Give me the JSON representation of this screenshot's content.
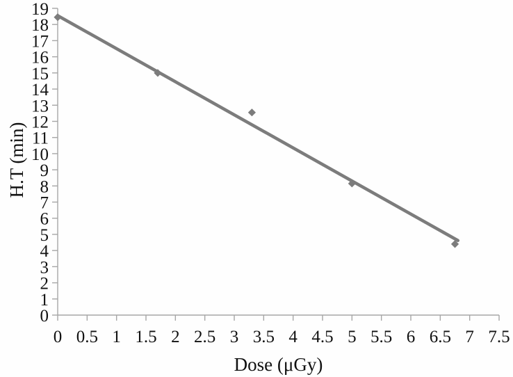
{
  "chart_data": {
    "type": "scatter",
    "title": "",
    "xlabel": "Dose (μGy)",
    "ylabel": "H.T (min)",
    "xlim": [
      0,
      7.5
    ],
    "xtick_step": 0.5,
    "ylim": [
      0,
      19
    ],
    "ytick_step": 1,
    "grid": false,
    "legend": "none",
    "marker": "diamond",
    "points": [
      {
        "x": 0,
        "y": 18.45
      },
      {
        "x": 1.7,
        "y": 15.0
      },
      {
        "x": 3.3,
        "y": 12.55
      },
      {
        "x": 5.0,
        "y": 8.15
      },
      {
        "x": 6.75,
        "y": 4.4
      }
    ],
    "trendline": {
      "x1": 0,
      "y1": 18.55,
      "x2": 6.8,
      "y2": 4.62
    },
    "colors": {
      "series": "#7c7c7c",
      "axis": "#a6a6a6",
      "text": "#111111",
      "background": "#fefefe"
    }
  }
}
